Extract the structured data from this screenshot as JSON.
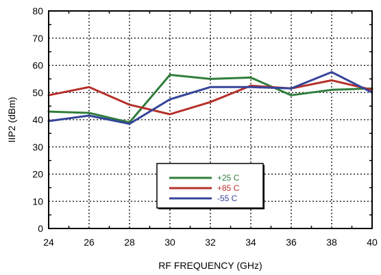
{
  "chart_data": {
    "type": "line",
    "xlabel": "RF FREQUENCY (GHz)",
    "ylabel": "IIP2 (dBm)",
    "xlim": [
      24,
      40
    ],
    "ylim": [
      0,
      80
    ],
    "x_ticks": [
      24,
      26,
      28,
      30,
      32,
      34,
      36,
      38,
      40
    ],
    "y_ticks": [
      0,
      10,
      20,
      30,
      40,
      50,
      60,
      70,
      80
    ],
    "grid": true,
    "legend_position": "bottom-center",
    "x": [
      24,
      26,
      28,
      30,
      32,
      34,
      36,
      38,
      40
    ],
    "series": [
      {
        "name": "+25 C",
        "color": "#2e7d3a",
        "values": [
          43,
          42.5,
          39,
          56.5,
          55,
          55.5,
          49,
          51,
          51.5
        ]
      },
      {
        "name": "+85 C",
        "color": "#b5302a",
        "values": [
          49,
          52,
          45.5,
          42,
          46.5,
          52.5,
          51.5,
          54.5,
          51
        ]
      },
      {
        "name": "-55 C",
        "color": "#35449a",
        "values": [
          39.5,
          41.5,
          38.5,
          47.5,
          52,
          52,
          51.5,
          57.5,
          50
        ]
      }
    ]
  }
}
